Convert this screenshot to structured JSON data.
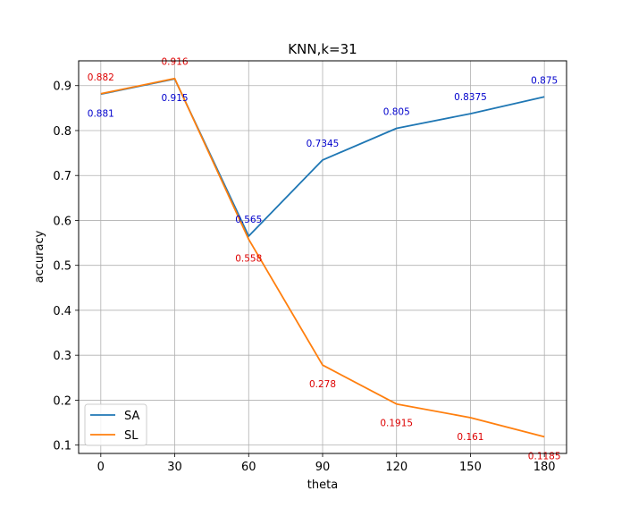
{
  "chart_data": {
    "type": "line",
    "title": "KNN,k=31",
    "xlabel": "theta",
    "ylabel": "accuracy",
    "x": [
      0,
      30,
      60,
      90,
      120,
      150,
      180
    ],
    "xticks": [
      "0",
      "30",
      "60",
      "90",
      "120",
      "150",
      "180"
    ],
    "yticks": [
      "0.1",
      "0.2",
      "0.3",
      "0.4",
      "0.5",
      "0.6",
      "0.7",
      "0.8",
      "0.9"
    ],
    "xlim": [
      -9,
      189
    ],
    "ylim": [
      0.0814,
      0.9552
    ],
    "grid": true,
    "legend_position": "lower-left",
    "series": [
      {
        "name": "SA",
        "color": "#1f77b4",
        "label_color": "#0000cc",
        "values": [
          0.881,
          0.915,
          0.565,
          0.7345,
          0.805,
          0.8375,
          0.875
        ],
        "labels": [
          "0.881",
          "0.915",
          "0.565",
          "0.7345",
          "0.805",
          "0.8375",
          "0.875"
        ]
      },
      {
        "name": "SL",
        "color": "#ff7f0e",
        "label_color": "#dd0000",
        "values": [
          0.882,
          0.916,
          0.558,
          0.278,
          0.1915,
          0.161,
          0.1185
        ],
        "labels": [
          "0.882",
          "0.916",
          "0.558",
          "0.278",
          "0.1915",
          "0.161",
          "0.1185"
        ]
      }
    ]
  }
}
